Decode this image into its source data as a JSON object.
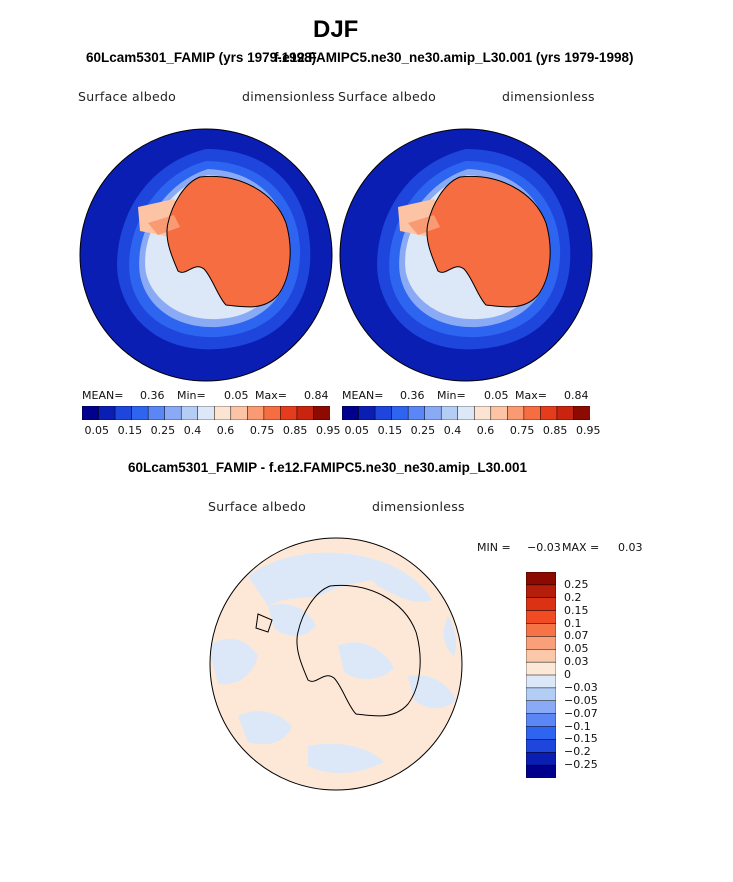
{
  "figure": {
    "season": "DJF",
    "left_title": "60Lcam5301_FAMIP (yrs 1979-1998)",
    "right_title": "f.e12.FAMIPC5.ne30_ne30.amip_L30.001 (yrs 1979-1998)",
    "diff_title": "60Lcam5301_FAMIP - f.e12.FAMIPC5.ne30_ne30.amip_L30.001"
  },
  "chart_data": [
    {
      "type": "heatmap",
      "panel": "left",
      "projection": "south-polar-stereographic",
      "variable": "Surface albedo",
      "units": "dimensionless",
      "stats": {
        "mean_label": "MEAN=",
        "mean": "0.36",
        "min_label": "Min=",
        "min": "0.05",
        "max_label": "Max=",
        "max": "0.84"
      },
      "colorbar": {
        "orientation": "horizontal",
        "levels": [
          0.05,
          0.1,
          0.15,
          0.2,
          0.25,
          0.3,
          0.4,
          0.5,
          0.6,
          0.7,
          0.75,
          0.8,
          0.85,
          0.9,
          0.95
        ],
        "tick_labels": [
          "0.05",
          "0.15",
          "0.25",
          "0.4",
          "0.6",
          "0.75",
          "0.85",
          "0.95"
        ],
        "colors": [
          "#00008c",
          "#0a1eb4",
          "#1e46dc",
          "#2d64f0",
          "#5a87f5",
          "#8aaaf5",
          "#b4cdf5",
          "#dce8f8",
          "#fde4d2",
          "#fcc4a5",
          "#f99a73",
          "#f56d41",
          "#e63c1e",
          "#c8240f",
          "#8c0a00"
        ]
      }
    },
    {
      "type": "heatmap",
      "panel": "right",
      "projection": "south-polar-stereographic",
      "variable": "Surface albedo",
      "units": "dimensionless",
      "stats": {
        "mean_label": "MEAN=",
        "mean": "0.36",
        "min_label": "Min=",
        "min": "0.05",
        "max_label": "Max=",
        "max": "0.84"
      },
      "colorbar": {
        "orientation": "horizontal",
        "levels": [
          0.05,
          0.1,
          0.15,
          0.2,
          0.25,
          0.3,
          0.4,
          0.5,
          0.6,
          0.7,
          0.75,
          0.8,
          0.85,
          0.9,
          0.95
        ],
        "tick_labels": [
          "0.05",
          "0.15",
          "0.25",
          "0.4",
          "0.6",
          "0.75",
          "0.85",
          "0.95"
        ],
        "colors": [
          "#00008c",
          "#0a1eb4",
          "#1e46dc",
          "#2d64f0",
          "#5a87f5",
          "#8aaaf5",
          "#b4cdf5",
          "#dce8f8",
          "#fde4d2",
          "#fcc4a5",
          "#f99a73",
          "#f56d41",
          "#e63c1e",
          "#c8240f",
          "#8c0a00"
        ]
      }
    },
    {
      "type": "heatmap",
      "panel": "difference",
      "projection": "south-polar-stereographic",
      "variable": "Surface albedo",
      "units": "dimensionless",
      "stats": {
        "min_label": "MIN =",
        "min": "−0.03",
        "max_label": "MAX =",
        "max": "0.03"
      },
      "colorbar": {
        "orientation": "vertical",
        "levels": [
          0.25,
          0.2,
          0.15,
          0.1,
          0.07,
          0.05,
          0.03,
          0,
          -0.03,
          -0.05,
          -0.07,
          -0.1,
          -0.15,
          -0.2,
          -0.25
        ],
        "tick_labels": [
          "0.25",
          "0.2",
          "0.15",
          "0.1",
          "0.07",
          "0.05",
          "0.03",
          "0",
          "−0.03",
          "−0.05",
          "−0.07",
          "−0.1",
          "−0.15",
          "−0.2",
          "−0.25"
        ],
        "colors": [
          "#8c0a00",
          "#b41e0a",
          "#dc3214",
          "#f04b23",
          "#f57346",
          "#f9a07a",
          "#fcc8aa",
          "#fde8d8",
          "#dce8f8",
          "#b4cdf5",
          "#8aaaf5",
          "#5a87f5",
          "#2d64f0",
          "#1e46dc",
          "#0a1eb4",
          "#00008c"
        ]
      }
    }
  ]
}
